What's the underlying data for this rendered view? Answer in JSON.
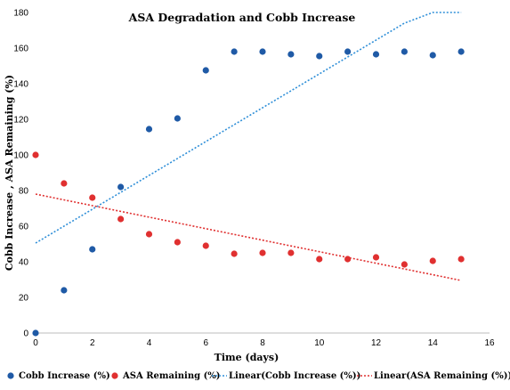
{
  "chart_data": {
    "type": "scatter",
    "title": "ASA Degradation and Cobb Increase",
    "xlabel": "Time (days)",
    "ylabel": "Cobb Increase , ASA Remaining (%)",
    "xlim": [
      0,
      16
    ],
    "ylim": [
      0,
      180
    ],
    "xticks": [
      0,
      2,
      4,
      6,
      8,
      10,
      12,
      14,
      16
    ],
    "yticks": [
      0,
      20,
      40,
      60,
      80,
      100,
      120,
      140,
      160,
      180
    ],
    "grid": false,
    "legend_position": "bottom",
    "series": [
      {
        "name": "Cobb Increase (%)",
        "color": "#1f5aa6",
        "x": [
          0,
          1,
          2,
          3,
          4,
          5,
          6,
          7,
          8,
          9,
          10,
          11,
          12,
          13,
          14,
          15
        ],
        "y": [
          0,
          24,
          47,
          82,
          114.5,
          120.5,
          147.5,
          158,
          158,
          156.5,
          155.5,
          158,
          156.5,
          158,
          156,
          158
        ]
      },
      {
        "name": "ASA Remaining (%)",
        "color": "#e03030",
        "x": [
          0,
          1,
          2,
          3,
          4,
          5,
          6,
          7,
          8,
          9,
          10,
          11,
          12,
          13,
          14,
          15
        ],
        "y": [
          100,
          84,
          76,
          64,
          55.5,
          51,
          49,
          44.5,
          45,
          45,
          41.5,
          41.5,
          42.5,
          38.5,
          40.5,
          41.5
        ]
      }
    ],
    "trendlines": [
      {
        "name": "Linear(Cobb Increase (%))",
        "color": "#2f8fd8",
        "x": [
          0,
          13,
          14,
          15
        ],
        "y": [
          50.5,
          174,
          180,
          180
        ]
      },
      {
        "name": "Linear(ASA Remaining (%))",
        "color": "#e03030",
        "x": [
          0,
          15
        ],
        "y": [
          78,
          29.5
        ]
      }
    ]
  }
}
